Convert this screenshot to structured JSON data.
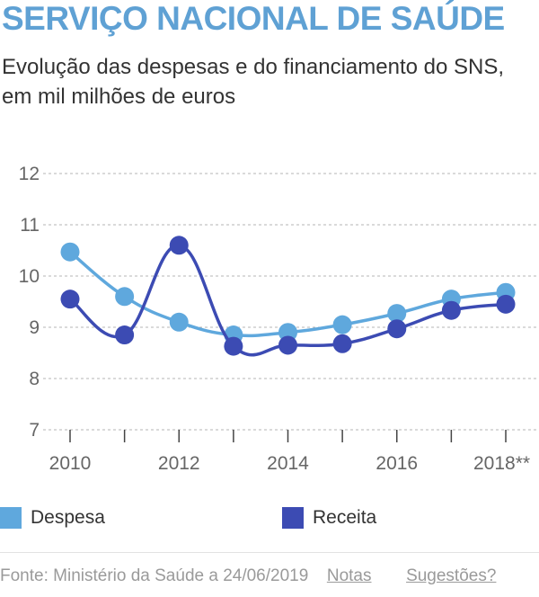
{
  "title": "SERVIÇO NACIONAL DE SAÚDE",
  "subtitle": "Evolução das despesas e do financiamento do SNS, em mil milhões de euros",
  "legend": {
    "despesa_label": "Despesa",
    "receita_label": "Receita",
    "despesa_color": "#5fa8dd",
    "receita_color": "#3c4bb3"
  },
  "footer": {
    "source": "Fonte: Ministério da Saúde a 24/06/2019",
    "notes_label": "Notas",
    "suggestions_label": "Sugestões?"
  },
  "chart_data": {
    "type": "line",
    "x": [
      2010,
      2011,
      2012,
      2013,
      2014,
      2015,
      2016,
      2017,
      2018
    ],
    "x_tick_labels": [
      "2010",
      "2012",
      "2014",
      "2016",
      "2018**"
    ],
    "x_tick_values": [
      2010,
      2012,
      2014,
      2016,
      2018
    ],
    "y_ticks": [
      7,
      8,
      9,
      10,
      11,
      12
    ],
    "ylim": [
      7,
      12
    ],
    "grid": true,
    "series": [
      {
        "name": "Despesa",
        "color": "#5fa8dd",
        "values": [
          10.47,
          9.6,
          9.1,
          8.85,
          8.9,
          9.05,
          9.27,
          9.55,
          9.68
        ]
      },
      {
        "name": "Receita",
        "color": "#3c4bb3",
        "values": [
          9.55,
          8.85,
          10.6,
          8.63,
          8.65,
          8.68,
          8.97,
          9.33,
          9.45
        ]
      }
    ]
  }
}
